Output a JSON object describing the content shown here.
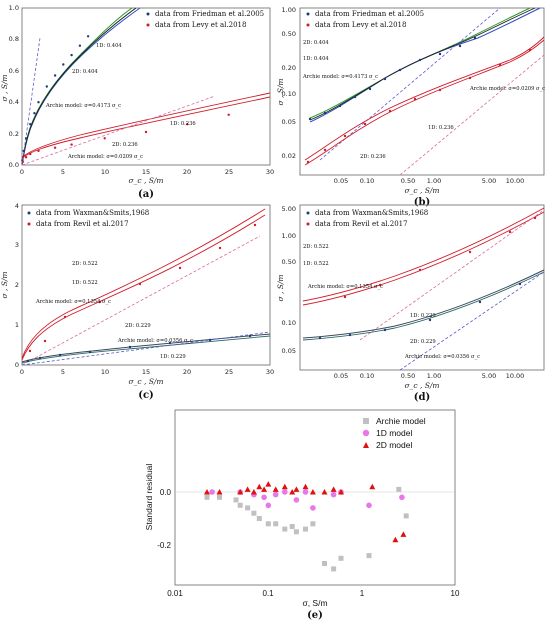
{
  "panels": [
    {
      "label": "(a)",
      "scale": "linear",
      "xlabel": "σ_c , S/m",
      "ylabel": "σ , S/m",
      "xlim": [
        0,
        30
      ],
      "ylim": [
        0,
        1.0
      ],
      "xticks": [
        "0",
        "5",
        "10",
        "15",
        "20",
        "25",
        "30"
      ],
      "yticks": [
        "0.0",
        "0.2",
        "0.4",
        "0.6",
        "0.8",
        "1.0"
      ],
      "legend": [
        "data from Friedman et al.2005",
        "data from Levy et al.2018"
      ],
      "annotations": [
        "1D: 0.404",
        "2D: 0.404",
        "Archie model: σ=0.4173 σ_c",
        "1D: 0.236",
        "2D: 0.236",
        "Archie model: σ=0.0209 σ_c"
      ]
    },
    {
      "label": "(b)",
      "scale": "log",
      "xlabel": "σ_c , S/m",
      "ylabel": "σ , S/m",
      "xticks": [
        "0.05",
        "0.10",
        "0.50",
        "1.00",
        "5.00",
        "10.00"
      ],
      "yticks": [
        "0.02",
        "0.05",
        "0.10",
        "0.20",
        "0.50",
        "1.00"
      ],
      "legend": [
        "data from Friedman et al.2005",
        "data from Levy et al.2018"
      ],
      "annotations": [
        "2D: 0.404",
        "1D: 0.404",
        "Archie model: σ=0.4173 σ_c",
        "Archie model: σ=0.0209 σ_c",
        "1D: 0.236",
        "2D: 0.236"
      ]
    },
    {
      "label": "(c)",
      "scale": "linear",
      "xlabel": "σ_c , S/m",
      "ylabel": "σ , S/m",
      "xlim": [
        0,
        30
      ],
      "ylim": [
        0,
        4
      ],
      "xticks": [
        "0",
        "5",
        "10",
        "15",
        "20",
        "25",
        "30"
      ],
      "yticks": [
        "0",
        "1",
        "2",
        "3",
        "4"
      ],
      "legend": [
        "data from Waxman&Smits,1968",
        "data from Revil et al.2017"
      ],
      "annotations": [
        "2D: 0.522",
        "1D: 0.522",
        "Archie model: σ=0.1354 σ_c",
        "2D: 0.229",
        "Archie model: σ=0.0356 σ_c",
        "1D: 0.229"
      ]
    },
    {
      "label": "(d)",
      "scale": "log",
      "xlabel": "σ_c , S/m",
      "ylabel": "σ , S/m",
      "xticks": [
        "0.05",
        "0.10",
        "0.50",
        "1.00",
        "5.00",
        "10.00"
      ],
      "yticks": [
        "0.05",
        "0.10",
        "0.50",
        "1.00",
        "5.00"
      ],
      "legend": [
        "data from Waxman&Smits,1968",
        "data from Revil et al.2017"
      ],
      "annotations": [
        "2D: 0.522",
        "1D: 0.522",
        "Archie model: σ=0.1354 σ_c",
        "1D: 0.229",
        "2D: 0.229",
        "Archie model: σ=0.0356 σ_c"
      ]
    }
  ],
  "residual_panel": {
    "label": "(e)",
    "xlabel": "σ, S/m",
    "ylabel": "Standard residual",
    "xticks": [
      "0.01",
      "0.1",
      "1",
      "10"
    ],
    "yticks": [
      "0.0",
      "-0.2"
    ],
    "legend": [
      "Archie model",
      "1D model",
      "2D model"
    ]
  },
  "colors": {
    "friedman": "#1f3b7a",
    "levy": "#d11b2a",
    "archie_pt": "#c0c0c0",
    "model1d_pt": "#e878e8",
    "model2d_pt": "#e01010",
    "green": "#2a9a2a",
    "blue": "#2f4ec4"
  },
  "chart_data": [
    {
      "type": "line",
      "panel": "a",
      "series": [
        {
          "name": "data from Friedman et al.2005",
          "x": [
            0.05,
            0.2,
            0.5,
            1,
            1.5,
            2,
            3,
            4,
            5,
            6,
            7,
            8
          ],
          "y": [
            0.03,
            0.09,
            0.17,
            0.26,
            0.33,
            0.4,
            0.5,
            0.57,
            0.64,
            0.7,
            0.76,
            0.82
          ]
        },
        {
          "name": "data from Levy et al.2018",
          "x": [
            0.1,
            0.5,
            1,
            2,
            4,
            6,
            10,
            15,
            20,
            25
          ],
          "y": [
            0.02,
            0.05,
            0.07,
            0.09,
            0.11,
            0.13,
            0.17,
            0.21,
            0.26,
            0.32
          ]
        }
      ]
    },
    {
      "type": "scatter",
      "panel": "e",
      "series": [
        {
          "name": "Archie model",
          "x": [
            0.022,
            0.03,
            0.045,
            0.05,
            0.06,
            0.07,
            0.08,
            0.1,
            0.12,
            0.15,
            0.18,
            0.2,
            0.25,
            0.3,
            0.4,
            0.5,
            0.6,
            1.2,
            2.5,
            3
          ],
          "y": [
            -0.02,
            -0.02,
            -0.03,
            -0.05,
            -0.06,
            -0.08,
            -0.1,
            -0.12,
            -0.12,
            -0.14,
            -0.13,
            -0.15,
            -0.14,
            -0.12,
            -0.27,
            -0.29,
            -0.25,
            -0.24,
            0.01,
            -0.09
          ]
        },
        {
          "name": "1D model",
          "x": [
            0.025,
            0.05,
            0.07,
            0.09,
            0.1,
            0.12,
            0.15,
            0.2,
            0.25,
            0.3,
            0.5,
            0.6,
            1.2,
            2.7
          ],
          "y": [
            0.0,
            0.0,
            -0.01,
            -0.02,
            -0.05,
            -0.01,
            0.0,
            -0.03,
            0.0,
            -0.06,
            -0.01,
            0.0,
            -0.05,
            -0.02
          ]
        },
        {
          "name": "2D model",
          "x": [
            0.022,
            0.03,
            0.05,
            0.06,
            0.07,
            0.08,
            0.09,
            0.1,
            0.12,
            0.15,
            0.18,
            0.2,
            0.25,
            0.3,
            0.4,
            0.5,
            0.6,
            1.3,
            2.3,
            2.8
          ],
          "y": [
            0.0,
            0.0,
            0.0,
            0.01,
            0.0,
            0.02,
            0.01,
            0.03,
            0.01,
            0.02,
            0.0,
            0.01,
            0.02,
            0.0,
            0.0,
            0.01,
            0.0,
            0.02,
            -0.18,
            -0.16
          ]
        }
      ]
    }
  ]
}
